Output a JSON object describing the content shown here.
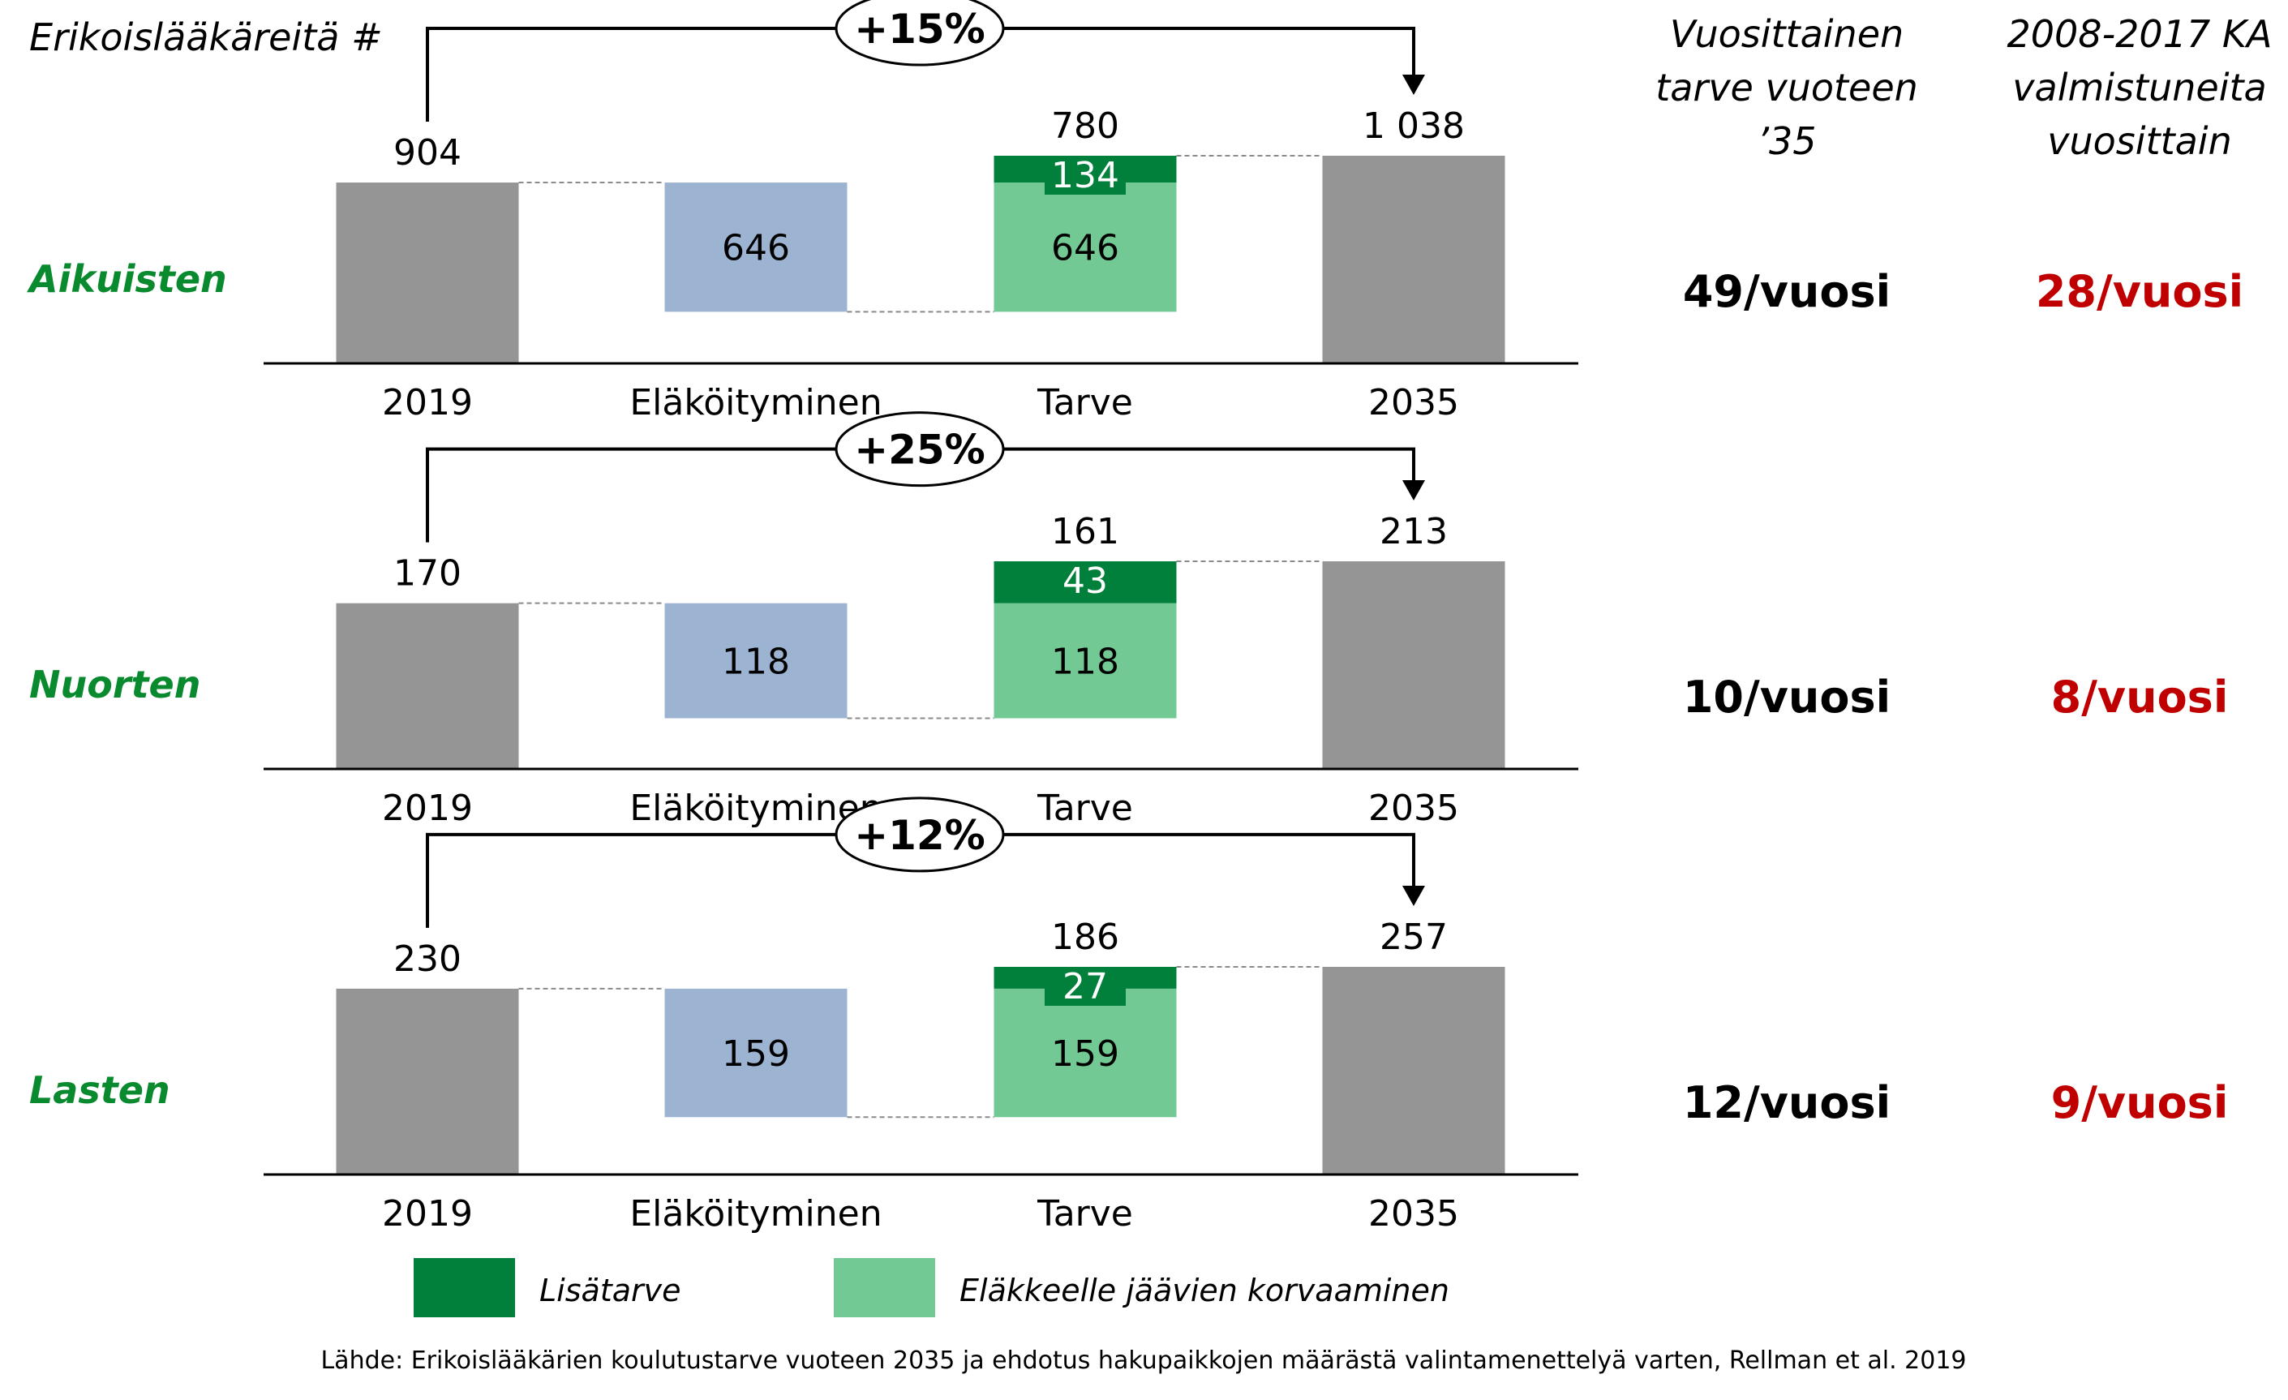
{
  "title": "Erikoislääkäreitä #",
  "column_headers": {
    "rate": [
      "Vuosittainen",
      "tarve vuoteen",
      "’35"
    ],
    "history": [
      "2008-2017 KA",
      "valmistuneita",
      "vuosittain"
    ]
  },
  "chart_data": [
    {
      "type": "bar",
      "name": "Aikuisten",
      "categories": [
        "2019",
        "Eläköityminen",
        "Tarve",
        "2035"
      ],
      "start_value": 904,
      "retirement": 646,
      "need_total": 780,
      "need_replacement": 646,
      "need_additional": 134,
      "end_value": 1038,
      "end_label": "1 038",
      "growth_label": "+15%",
      "annual_need": "49/vuosi",
      "historical_avg": "28/vuosi"
    },
    {
      "type": "bar",
      "name": "Nuorten",
      "categories": [
        "2019",
        "Eläköityminen",
        "Tarve",
        "2035"
      ],
      "start_value": 170,
      "retirement": 118,
      "need_total": 161,
      "need_replacement": 118,
      "need_additional": 43,
      "end_value": 213,
      "end_label": "213",
      "growth_label": "+25%",
      "annual_need": "10/vuosi",
      "historical_avg": "8/vuosi"
    },
    {
      "type": "bar",
      "name": "Lasten",
      "categories": [
        "2019",
        "Eläköityminen",
        "Tarve",
        "2035"
      ],
      "start_value": 230,
      "retirement": 159,
      "need_total": 186,
      "need_replacement": 159,
      "need_additional": 27,
      "end_value": 257,
      "end_label": "257",
      "growth_label": "+12%",
      "annual_need": "12/vuosi",
      "historical_avg": "9/vuosi"
    }
  ],
  "legend": [
    {
      "label": "Lisätarve",
      "color": "#00803a"
    },
    {
      "label": "Eläkkeelle jäävien korvaaminen",
      "color": "#72c993"
    }
  ],
  "colors": {
    "stock": "#959595",
    "retirement": "#9cb3d1",
    "replacement": "#72c993",
    "additional": "#00803a",
    "row_label": "#0a8a2e",
    "historical": "#c00000"
  },
  "source": "Lähde: Erikoislääkärien koulutustarve vuoteen 2035 ja ehdotus hakupaikkojen määrästä valintamenettelyä varten, Rellman et al. 2019"
}
